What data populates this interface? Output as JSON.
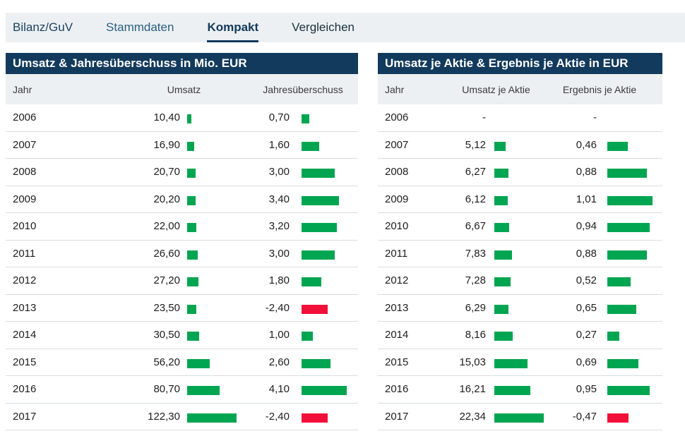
{
  "tabs": [
    {
      "label": "Bilanz/GuV",
      "active": false
    },
    {
      "label": "Stammdaten",
      "active": false
    },
    {
      "label": "Kompakt",
      "active": true
    },
    {
      "label": "Vergleichen",
      "active": false
    }
  ],
  "left_table": {
    "title": "Umsatz & Jahresüberschuss in Mio. EUR",
    "columns": {
      "year": "Jahr",
      "col1": "Umsatz",
      "col2": "Jahresüberschuss"
    },
    "rows": [
      {
        "year": "2006",
        "v1": 10.4,
        "v1_label": "10,40",
        "v2": 0.7,
        "v2_label": "0,70"
      },
      {
        "year": "2007",
        "v1": 16.9,
        "v1_label": "16,90",
        "v2": 1.6,
        "v2_label": "1,60"
      },
      {
        "year": "2008",
        "v1": 20.7,
        "v1_label": "20,70",
        "v2": 3.0,
        "v2_label": "3,00"
      },
      {
        "year": "2009",
        "v1": 20.2,
        "v1_label": "20,20",
        "v2": 3.4,
        "v2_label": "3,40"
      },
      {
        "year": "2010",
        "v1": 22.0,
        "v1_label": "22,00",
        "v2": 3.2,
        "v2_label": "3,20"
      },
      {
        "year": "2011",
        "v1": 26.6,
        "v1_label": "26,60",
        "v2": 3.0,
        "v2_label": "3,00"
      },
      {
        "year": "2012",
        "v1": 27.2,
        "v1_label": "27,20",
        "v2": 1.8,
        "v2_label": "1,80"
      },
      {
        "year": "2013",
        "v1": 23.5,
        "v1_label": "23,50",
        "v2": -2.4,
        "v2_label": "-2,40"
      },
      {
        "year": "2014",
        "v1": 30.5,
        "v1_label": "30,50",
        "v2": 1.0,
        "v2_label": "1,00"
      },
      {
        "year": "2015",
        "v1": 56.2,
        "v1_label": "56,20",
        "v2": 2.6,
        "v2_label": "2,60"
      },
      {
        "year": "2016",
        "v1": 80.7,
        "v1_label": "80,70",
        "v2": 4.1,
        "v2_label": "4,10"
      },
      {
        "year": "2017",
        "v1": 122.3,
        "v1_label": "122,30",
        "v2": -2.4,
        "v2_label": "-2,40"
      }
    ]
  },
  "right_table": {
    "title": "Umsatz je Aktie & Ergebnis je Aktie in EUR",
    "columns": {
      "year": "Jahr",
      "col1": "Umsatz je Aktie",
      "col2": "Ergebnis je Aktie"
    },
    "rows": [
      {
        "year": "2006",
        "v1": null,
        "v1_label": "-",
        "v2": null,
        "v2_label": "-"
      },
      {
        "year": "2007",
        "v1": 5.12,
        "v1_label": "5,12",
        "v2": 0.46,
        "v2_label": "0,46"
      },
      {
        "year": "2008",
        "v1": 6.27,
        "v1_label": "6,27",
        "v2": 0.88,
        "v2_label": "0,88"
      },
      {
        "year": "2009",
        "v1": 6.12,
        "v1_label": "6,12",
        "v2": 1.01,
        "v2_label": "1,01"
      },
      {
        "year": "2010",
        "v1": 6.67,
        "v1_label": "6,67",
        "v2": 0.94,
        "v2_label": "0,94"
      },
      {
        "year": "2011",
        "v1": 7.83,
        "v1_label": "7,83",
        "v2": 0.88,
        "v2_label": "0,88"
      },
      {
        "year": "2012",
        "v1": 7.28,
        "v1_label": "7,28",
        "v2": 0.52,
        "v2_label": "0,52"
      },
      {
        "year": "2013",
        "v1": 6.29,
        "v1_label": "6,29",
        "v2": 0.65,
        "v2_label": "0,65"
      },
      {
        "year": "2014",
        "v1": 8.16,
        "v1_label": "8,16",
        "v2": 0.27,
        "v2_label": "0,27"
      },
      {
        "year": "2015",
        "v1": 15.03,
        "v1_label": "15,03",
        "v2": 0.69,
        "v2_label": "0,69"
      },
      {
        "year": "2016",
        "v1": 16.21,
        "v1_label": "16,21",
        "v2": 0.95,
        "v2_label": "0,95"
      },
      {
        "year": "2017",
        "v1": 22.34,
        "v1_label": "22,34",
        "v2": -0.47,
        "v2_label": "-0,47"
      }
    ]
  },
  "colors": {
    "header_bg": "#123a5c",
    "positive_bar": "#00a551",
    "negative_bar": "#f01039",
    "tab_bar_bg": "#edf0f2",
    "column_header_bg": "#edf0f2",
    "row_divider": "#d9dde1"
  }
}
